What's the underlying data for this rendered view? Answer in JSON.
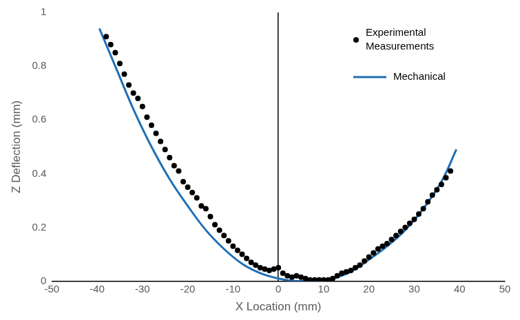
{
  "chart_data": {
    "type": "scatter",
    "x_label": "X Location (mm)",
    "y_label": "Z Deflection (mm)",
    "xlim": [
      -50,
      50
    ],
    "xticks": [
      -50,
      -40,
      -30,
      -20,
      -10,
      0,
      10,
      20,
      30,
      40,
      50
    ],
    "ylim": [
      0,
      1
    ],
    "yticks": [
      0,
      0.2,
      0.4,
      0.6,
      0.8,
      1
    ],
    "grid": false,
    "legend": "top-right",
    "series": [
      {
        "name": "Experimental Measurements",
        "type": "scatter",
        "marker": "circle",
        "color": "#000000",
        "x": [
          -38,
          -37,
          -36,
          -35,
          -34,
          -33,
          -32,
          -31,
          -30,
          -29,
          -28,
          -27,
          -26,
          -25,
          -24,
          -23,
          -22,
          -21,
          -20,
          -19,
          -18,
          -17,
          -16,
          -15,
          -14,
          -13,
          -12,
          -11,
          -10,
          -9,
          -8,
          -7,
          -6,
          -5,
          -4,
          -3,
          -2,
          -1,
          0,
          1,
          2,
          3,
          4,
          5,
          6,
          7,
          8,
          9,
          10,
          11,
          12,
          13,
          14,
          15,
          16,
          17,
          18,
          19,
          20,
          21,
          22,
          23,
          24,
          25,
          26,
          27,
          28,
          29,
          30,
          31,
          32,
          33,
          34,
          35,
          36,
          37,
          38
        ],
        "values": [
          0.91,
          0.88,
          0.85,
          0.81,
          0.77,
          0.73,
          0.7,
          0.68,
          0.65,
          0.61,
          0.58,
          0.55,
          0.52,
          0.49,
          0.46,
          0.43,
          0.41,
          0.37,
          0.35,
          0.33,
          0.31,
          0.28,
          0.27,
          0.24,
          0.21,
          0.19,
          0.17,
          0.15,
          0.13,
          0.115,
          0.1,
          0.085,
          0.07,
          0.06,
          0.05,
          0.045,
          0.04,
          0.045,
          0.05,
          0.03,
          0.02,
          0.015,
          0.02,
          0.015,
          0.01,
          0.005,
          0.005,
          0.005,
          0.005,
          0.005,
          0.01,
          0.02,
          0.03,
          0.035,
          0.04,
          0.05,
          0.06,
          0.075,
          0.09,
          0.105,
          0.12,
          0.13,
          0.14,
          0.155,
          0.17,
          0.185,
          0.2,
          0.215,
          0.23,
          0.25,
          0.27,
          0.295,
          0.32,
          0.34,
          0.36,
          0.385,
          0.41
        ]
      },
      {
        "name": "Mechanical",
        "type": "line",
        "line_style": "solid",
        "color": "#1f6fb5",
        "x": [
          -39.5,
          -36,
          -32,
          -28,
          -24,
          -20,
          -16,
          -12,
          -8,
          -4,
          0,
          4,
          8,
          12,
          16,
          20,
          24,
          28,
          32,
          36,
          39.3
        ],
        "values": [
          0.94,
          0.8,
          0.64,
          0.5,
          0.38,
          0.28,
          0.19,
          0.12,
          0.065,
          0.03,
          0.01,
          0.0,
          0.0,
          0.01,
          0.035,
          0.08,
          0.13,
          0.19,
          0.27,
          0.37,
          0.49
        ]
      }
    ]
  }
}
